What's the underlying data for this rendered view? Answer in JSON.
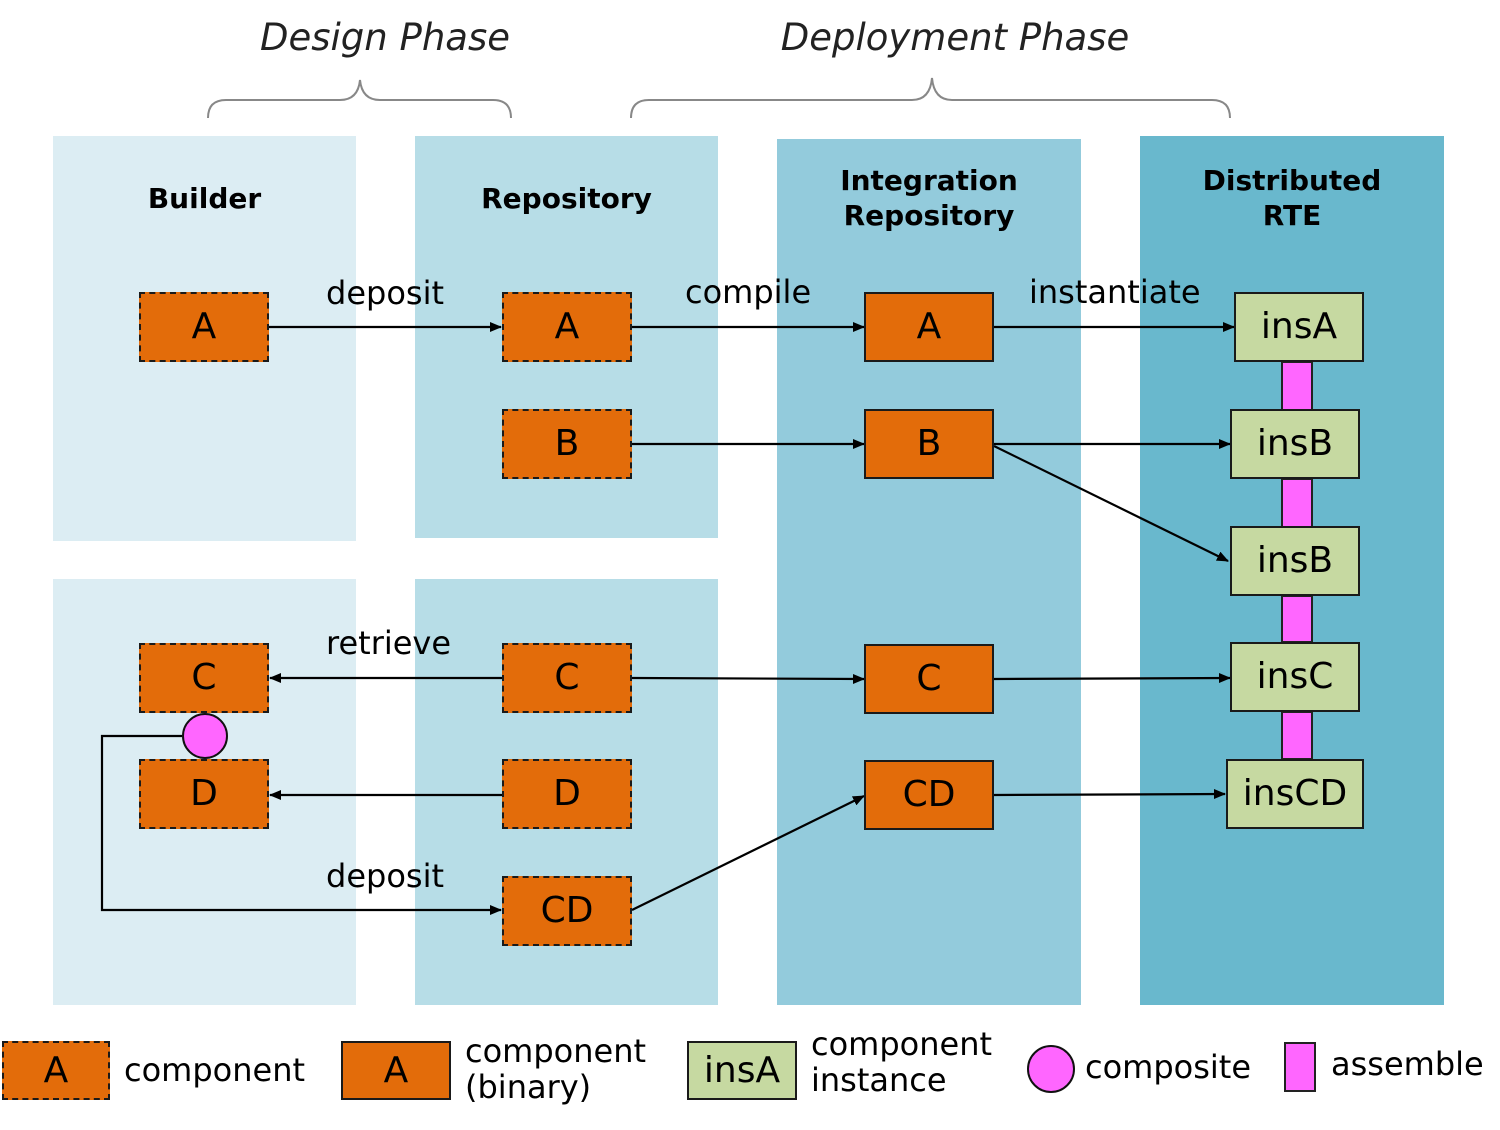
{
  "phases": {
    "design": "Design Phase",
    "deployment": "Deployment Phase"
  },
  "panels": {
    "builder": "Builder",
    "repository": "Repository",
    "integration_line1": "Integration",
    "integration_line2": "Repository",
    "rte_line1": "Distributed",
    "rte_line2": "RTE"
  },
  "builder": {
    "a": "A",
    "c": "C",
    "d": "D"
  },
  "repository": {
    "a": "A",
    "b": "B",
    "c": "C",
    "d": "D",
    "cd": "CD"
  },
  "integration": {
    "a": "A",
    "b": "B",
    "c": "C",
    "cd": "CD"
  },
  "rte": {
    "insA": "insA",
    "insB1": "insB",
    "insB2": "insB",
    "insC": "insC",
    "insCD": "insCD"
  },
  "edge_labels": {
    "deposit_top": "deposit",
    "compile": "compile",
    "instantiate": "instantiate",
    "retrieve": "retrieve",
    "deposit_bottom": "deposit"
  },
  "legend": {
    "component_sample": "A",
    "component_label": "component",
    "binary_sample": "A",
    "binary_label_line1": "component",
    "binary_label_line2": "(binary)",
    "instance_sample": "insA",
    "instance_label_line1": "component",
    "instance_label_line2": "instance",
    "composite_label": "composite",
    "assemble_label": "assemble"
  },
  "colors": {
    "component": "#e36c0a",
    "instance": "#c6d9a1",
    "composite": "#ff66ff",
    "builder_panel": "#dcedf3",
    "repository_panel": "#b7dde7",
    "integration_panel": "#93cbdc",
    "rte_panel": "#69b8cd"
  }
}
